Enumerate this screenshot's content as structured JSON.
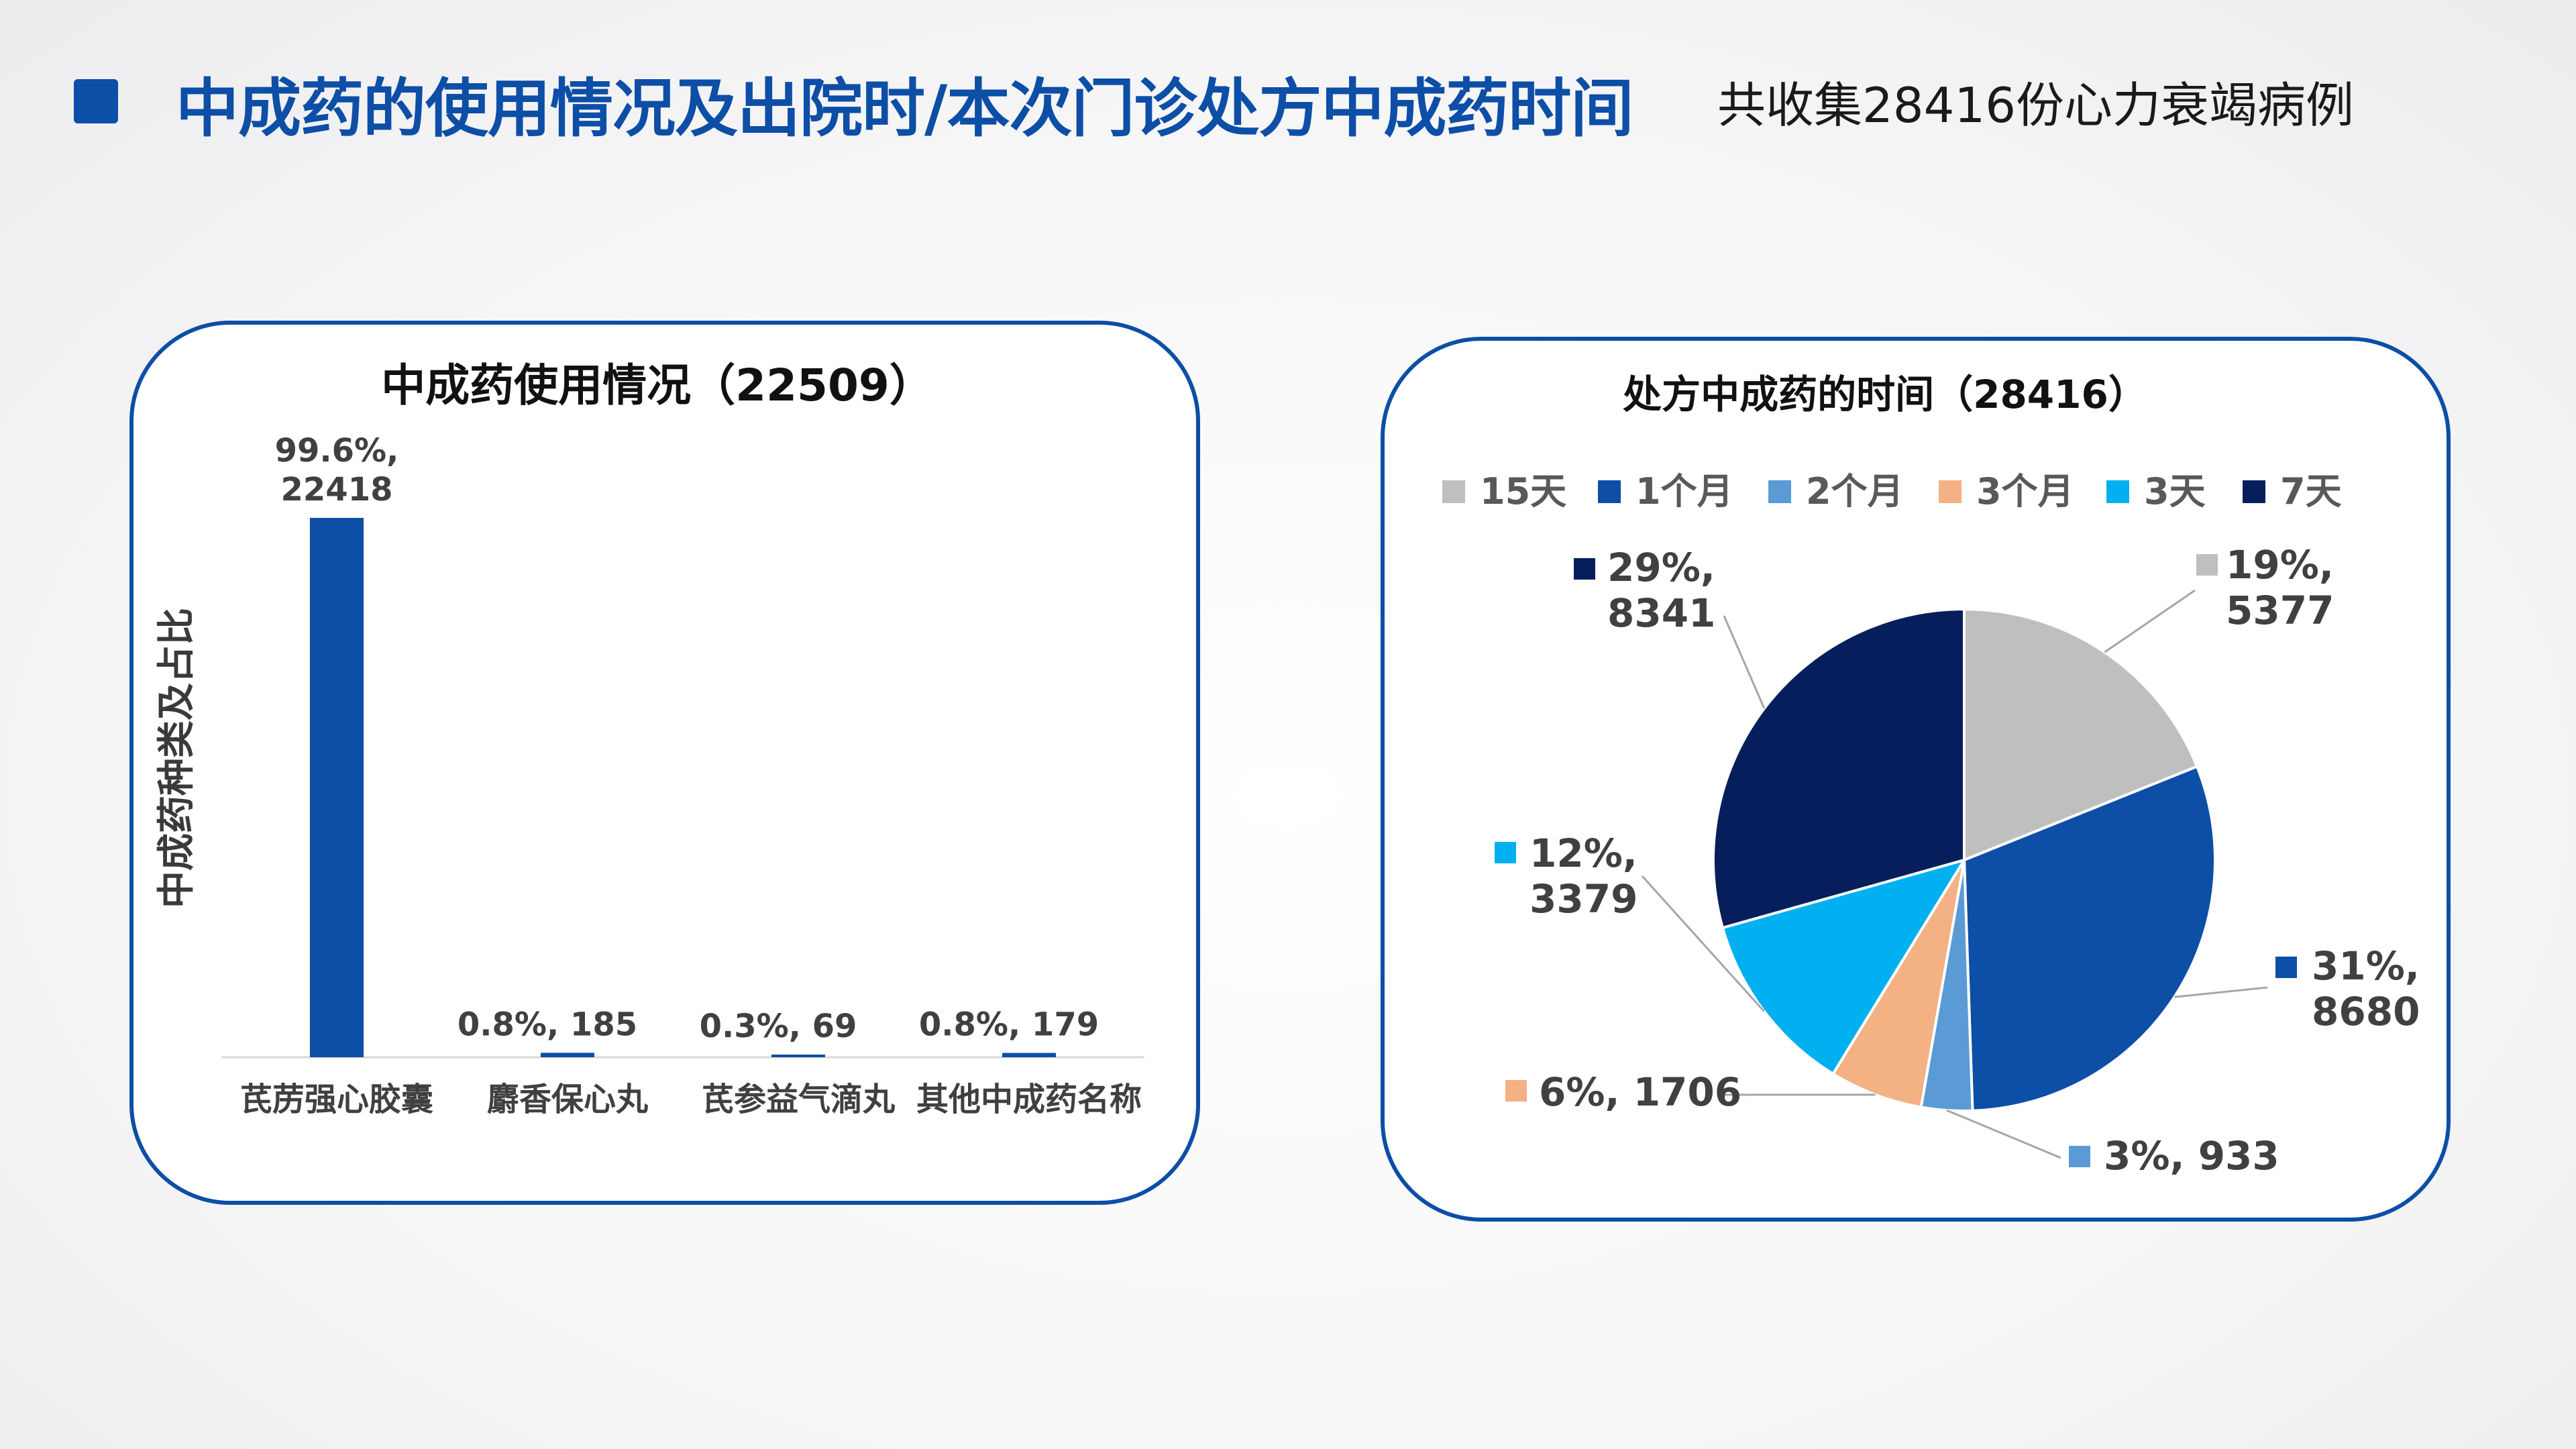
{
  "header": {
    "title": "中成药的使用情况及出院时/本次门诊处方中成药时间",
    "subtitle": "共收集28416份心力衰竭病例"
  },
  "colors": {
    "accent": "#0d4ea6"
  },
  "chart_data": [
    {
      "type": "bar",
      "title": "中成药使用情况（22509）",
      "ylabel": "中成药种类及占比",
      "categories": [
        "芪苈强心胶囊",
        "麝香保心丸",
        "芪参益气滴丸",
        "其他中成药名称"
      ],
      "values": [
        22418,
        185,
        69,
        179
      ],
      "percents": [
        "99.6%",
        "0.8%",
        "0.3%",
        "0.8%"
      ],
      "data_labels": [
        "99.6%,\n22418",
        "0.8%, 185",
        "0.3%, 69",
        "0.8%, 179"
      ],
      "ylim": [
        0,
        22418
      ],
      "grid": false,
      "bar_color": "#0d4ea6"
    },
    {
      "type": "pie",
      "title": "处方中成药的时间（28416）",
      "legend_position": "top",
      "labels": [
        "15天",
        "1个月",
        "2个月",
        "3个月",
        "3天",
        "7天"
      ],
      "values": [
        5377,
        8680,
        933,
        1706,
        3379,
        8341
      ],
      "percents": [
        "19%",
        "31%",
        "3%",
        "6%",
        "12%",
        "29%"
      ],
      "data_labels": [
        "19%,\n5377",
        "31%,\n8680",
        "3%, 933",
        "6%, 1706",
        "12%,\n3379",
        "29%,\n8341"
      ],
      "colors": [
        "#bfbfbf",
        "#0d4ea6",
        "#5b9bd5",
        "#f4b183",
        "#00b0f0",
        "#061f5c"
      ]
    }
  ]
}
